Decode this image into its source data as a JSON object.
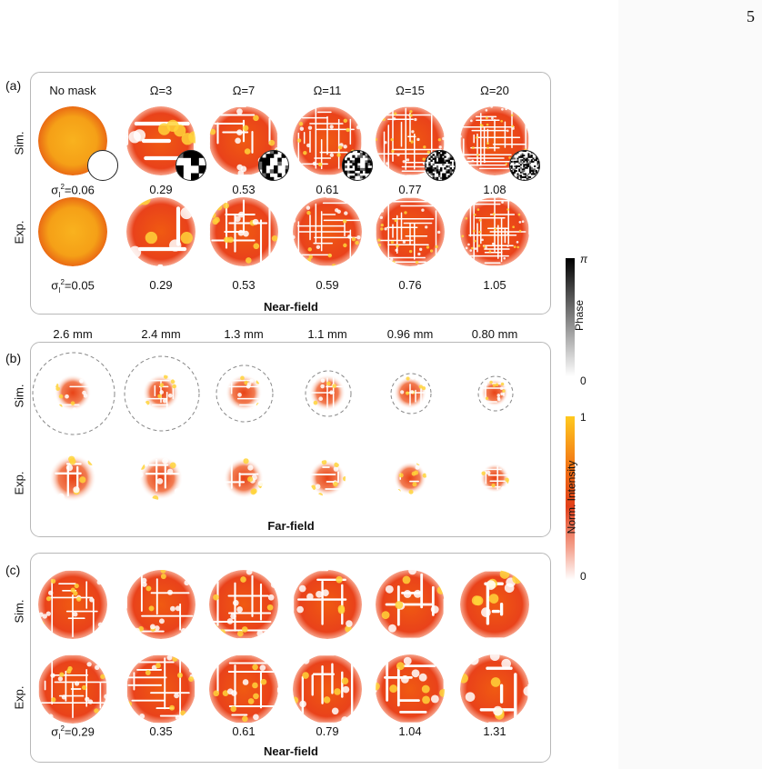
{
  "page_number": "5",
  "panel_a": {
    "label": "(a)",
    "columns": [
      "No mask",
      "Ω=3",
      "Ω=7",
      "Ω=11",
      "Ω=15",
      "Ω=20"
    ],
    "row_labels": [
      "Sim.",
      "Exp."
    ],
    "sim_values": [
      "σI²=0.06",
      "0.29",
      "0.53",
      "0.61",
      "0.77",
      "1.08"
    ],
    "exp_values": [
      "σI²=0.05",
      "0.29",
      "0.53",
      "0.59",
      "0.76",
      "1.05"
    ],
    "figure_label": "Near-field"
  },
  "panel_b": {
    "label": "(b)",
    "columns": [
      "2.6 mm",
      "2.4 mm",
      "1.3 mm",
      "1.1 mm",
      "0.96 mm",
      "0.80 mm"
    ],
    "row_labels": [
      "Sim.",
      "Exp."
    ],
    "figure_label": "Far-field"
  },
  "panel_c": {
    "label": "(c)",
    "row_labels": [
      "Sim.",
      "Exp."
    ],
    "values": [
      "σI²=0.29",
      "0.35",
      "0.61",
      "0.79",
      "1.04",
      "1.31"
    ],
    "figure_label": "Near-field"
  },
  "colorbar_phase": {
    "title": "Phase",
    "max": "π",
    "min": "0"
  },
  "colorbar_intensity": {
    "title": "Norm. Intensity",
    "max": "1",
    "min": "0"
  },
  "colors": {
    "intensity_high": "#ffd21f",
    "intensity_mid": "#e83a10",
    "intensity_low": "#ffffff",
    "phase_high": "#000000"
  }
}
